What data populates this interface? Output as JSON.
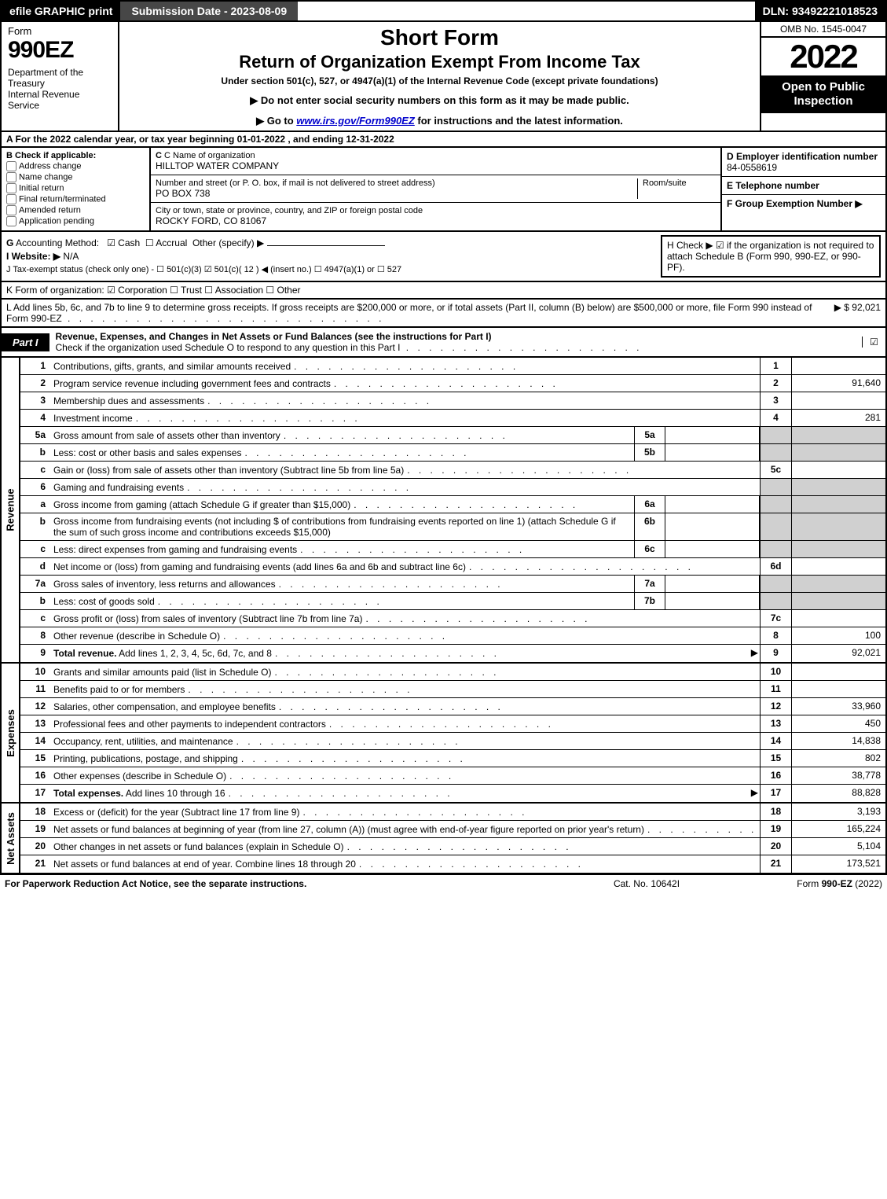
{
  "topbar": {
    "efile": "efile GRAPHIC print",
    "submission": "Submission Date - 2023-08-09",
    "dln": "DLN: 93492221018523"
  },
  "header": {
    "form_label": "Form",
    "form_num": "990EZ",
    "dept": "Department of the Treasury\nInternal Revenue Service",
    "title1": "Short Form",
    "title2": "Return of Organization Exempt From Income Tax",
    "subtitle": "Under section 501(c), 527, or 4947(a)(1) of the Internal Revenue Code (except private foundations)",
    "note1": "▶ Do not enter social security numbers on this form as it may be made public.",
    "note2": "▶ Go to www.irs.gov/Form990EZ for instructions and the latest information.",
    "omb": "OMB No. 1545-0047",
    "year": "2022",
    "open": "Open to Public Inspection"
  },
  "a": "A  For the 2022 calendar year, or tax year beginning 01-01-2022  , and ending 12-31-2022",
  "b": {
    "header": "B  Check if applicable:",
    "opts": [
      "Address change",
      "Name change",
      "Initial return",
      "Final return/terminated",
      "Amended return",
      "Application pending"
    ]
  },
  "c": {
    "name_lbl": "C Name of organization",
    "name": "HILLTOP WATER COMPANY",
    "addr_lbl": "Number and street (or P. O. box, if mail is not delivered to street address)",
    "room_lbl": "Room/suite",
    "addr": "PO BOX 738",
    "city_lbl": "City or town, state or province, country, and ZIP or foreign postal code",
    "city": "ROCKY FORD, CO  81067"
  },
  "d": {
    "lbl": "D Employer identification number",
    "val": "84-0558619"
  },
  "e": {
    "lbl": "E Telephone number",
    "val": ""
  },
  "f": {
    "lbl": "F Group Exemption Number  ▶",
    "val": ""
  },
  "g": "G Accounting Method:   ☑ Cash  ☐ Accrual  Other (specify) ▶",
  "h": "H  Check ▶  ☑  if the organization is not required to attach Schedule B (Form 990, 990-EZ, or 990-PF).",
  "i": "I Website: ▶ N/A",
  "j": "J Tax-exempt status (check only one) - ☐ 501(c)(3) ☑ 501(c)( 12 ) ◀ (insert no.) ☐ 4947(a)(1) or ☐ 527",
  "k": "K Form of organization:  ☑ Corporation  ☐ Trust  ☐ Association  ☐ Other",
  "l": {
    "text": "L Add lines 5b, 6c, and 7b to line 9 to determine gross receipts. If gross receipts are $200,000 or more, or if total assets (Part II, column (B) below) are $500,000 or more, file Form 990 instead of Form 990-EZ",
    "amount": "▶ $ 92,021"
  },
  "part1": {
    "tag": "Part I",
    "title": "Revenue, Expenses, and Changes in Net Assets or Fund Balances (see the instructions for Part I)",
    "check_text": "Check if the organization used Schedule O to respond to any question in this Part I"
  },
  "sections": {
    "revenue": "Revenue",
    "expenses": "Expenses",
    "netassets": "Net Assets"
  },
  "lines": {
    "1": {
      "n": "1",
      "d": "Contributions, gifts, grants, and similar amounts received",
      "c": "1",
      "a": ""
    },
    "2": {
      "n": "2",
      "d": "Program service revenue including government fees and contracts",
      "c": "2",
      "a": "91,640"
    },
    "3": {
      "n": "3",
      "d": "Membership dues and assessments",
      "c": "3",
      "a": ""
    },
    "4": {
      "n": "4",
      "d": "Investment income",
      "c": "4",
      "a": "281"
    },
    "5a": {
      "n": "5a",
      "d": "Gross amount from sale of assets other than inventory",
      "sc": "5a"
    },
    "5b": {
      "n": "b",
      "d": "Less: cost or other basis and sales expenses",
      "sc": "5b"
    },
    "5c": {
      "n": "c",
      "d": "Gain or (loss) from sale of assets other than inventory (Subtract line 5b from line 5a)",
      "c": "5c",
      "a": ""
    },
    "6": {
      "n": "6",
      "d": "Gaming and fundraising events"
    },
    "6a": {
      "n": "a",
      "d": "Gross income from gaming (attach Schedule G if greater than $15,000)",
      "sc": "6a"
    },
    "6b": {
      "n": "b",
      "d": "Gross income from fundraising events (not including $                    of contributions from fundraising events reported on line 1) (attach Schedule G if the sum of such gross income and contributions exceeds $15,000)",
      "sc": "6b"
    },
    "6c": {
      "n": "c",
      "d": "Less: direct expenses from gaming and fundraising events",
      "sc": "6c"
    },
    "6d": {
      "n": "d",
      "d": "Net income or (loss) from gaming and fundraising events (add lines 6a and 6b and subtract line 6c)",
      "c": "6d",
      "a": ""
    },
    "7a": {
      "n": "7a",
      "d": "Gross sales of inventory, less returns and allowances",
      "sc": "7a"
    },
    "7b": {
      "n": "b",
      "d": "Less: cost of goods sold",
      "sc": "7b"
    },
    "7c": {
      "n": "c",
      "d": "Gross profit or (loss) from sales of inventory (Subtract line 7b from line 7a)",
      "c": "7c",
      "a": ""
    },
    "8": {
      "n": "8",
      "d": "Other revenue (describe in Schedule O)",
      "c": "8",
      "a": "100"
    },
    "9": {
      "n": "9",
      "d": "Total revenue. Add lines 1, 2, 3, 4, 5c, 6d, 7c, and 8",
      "c": "9",
      "a": "92,021",
      "bold": true,
      "arrow": true
    },
    "10": {
      "n": "10",
      "d": "Grants and similar amounts paid (list in Schedule O)",
      "c": "10",
      "a": ""
    },
    "11": {
      "n": "11",
      "d": "Benefits paid to or for members",
      "c": "11",
      "a": ""
    },
    "12": {
      "n": "12",
      "d": "Salaries, other compensation, and employee benefits",
      "c": "12",
      "a": "33,960"
    },
    "13": {
      "n": "13",
      "d": "Professional fees and other payments to independent contractors",
      "c": "13",
      "a": "450"
    },
    "14": {
      "n": "14",
      "d": "Occupancy, rent, utilities, and maintenance",
      "c": "14",
      "a": "14,838"
    },
    "15": {
      "n": "15",
      "d": "Printing, publications, postage, and shipping",
      "c": "15",
      "a": "802"
    },
    "16": {
      "n": "16",
      "d": "Other expenses (describe in Schedule O)",
      "c": "16",
      "a": "38,778"
    },
    "17": {
      "n": "17",
      "d": "Total expenses. Add lines 10 through 16",
      "c": "17",
      "a": "88,828",
      "bold": true,
      "arrow": true
    },
    "18": {
      "n": "18",
      "d": "Excess or (deficit) for the year (Subtract line 17 from line 9)",
      "c": "18",
      "a": "3,193"
    },
    "19": {
      "n": "19",
      "d": "Net assets or fund balances at beginning of year (from line 27, column (A)) (must agree with end-of-year figure reported on prior year's return)",
      "c": "19",
      "a": "165,224"
    },
    "20": {
      "n": "20",
      "d": "Other changes in net assets or fund balances (explain in Schedule O)",
      "c": "20",
      "a": "5,104"
    },
    "21": {
      "n": "21",
      "d": "Net assets or fund balances at end of year. Combine lines 18 through 20",
      "c": "21",
      "a": "173,521"
    }
  },
  "footer": {
    "left": "For Paperwork Reduction Act Notice, see the separate instructions.",
    "center": "Cat. No. 10642I",
    "right_prefix": "Form ",
    "right_form": "990-EZ",
    "right_suffix": " (2022)"
  }
}
